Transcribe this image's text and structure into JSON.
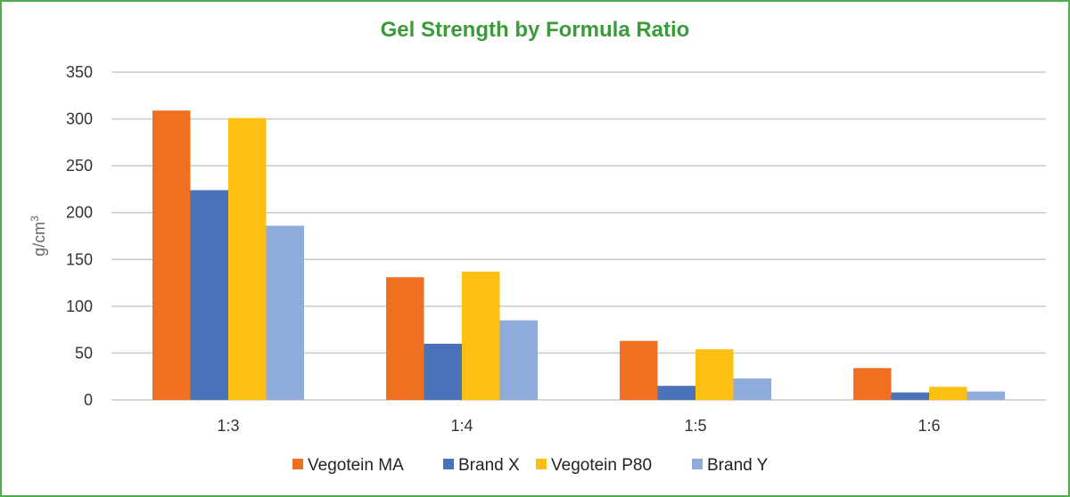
{
  "chart_data": {
    "type": "bar",
    "title": "Gel Strength by Formula Ratio",
    "xlabel": "",
    "ylabel": "g/cm",
    "ylabel_superscript": "3",
    "ylim": [
      0,
      350
    ],
    "yticks": [
      0,
      50,
      100,
      150,
      200,
      250,
      300,
      350
    ],
    "grid": true,
    "legend": "bottom",
    "categories": [
      "1:3",
      "1:4",
      "1:5",
      "1:6"
    ],
    "series": [
      {
        "name": "Vegotein MA",
        "color": "#f07022",
        "values": [
          309,
          131,
          63,
          34
        ]
      },
      {
        "name": "Brand X",
        "color": "#4a72b8",
        "values": [
          224,
          60,
          15,
          8
        ]
      },
      {
        "name": "Vegotein P80",
        "color": "#fdbf12",
        "values": [
          301,
          137,
          54,
          14
        ]
      },
      {
        "name": "Brand Y",
        "color": "#8eabd9",
        "values": [
          186,
          85,
          23,
          9
        ]
      }
    ]
  },
  "colors": {
    "title": "#3a9b3a",
    "border": "#4cae4c",
    "grid": "#c8c8c8"
  }
}
